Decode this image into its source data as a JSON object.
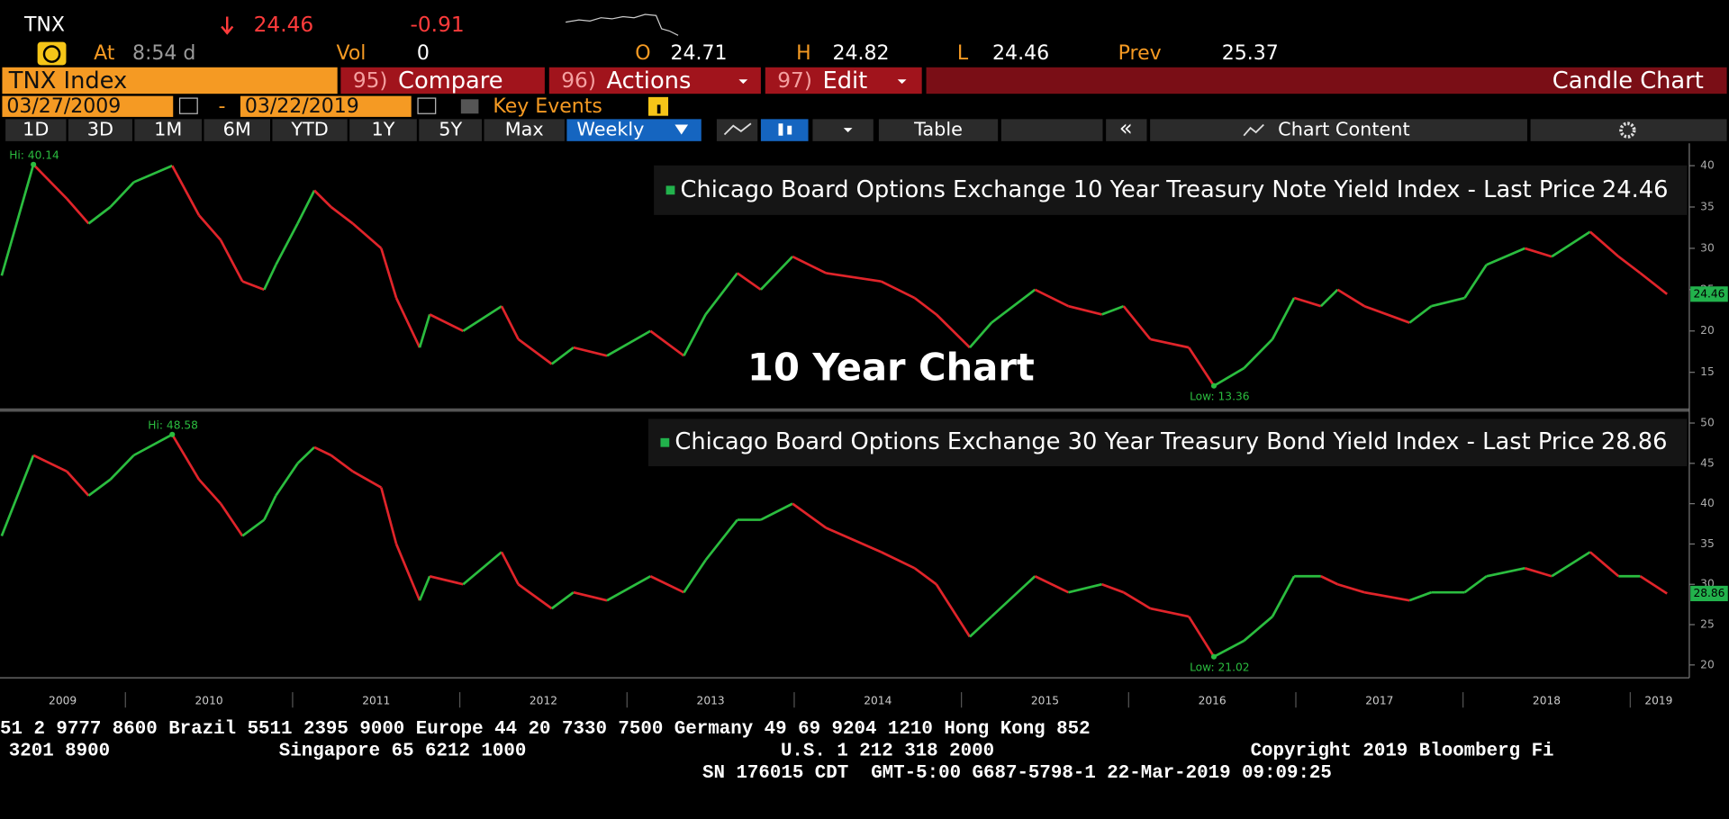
{
  "quote": {
    "ticker": "TNX",
    "last": "24.46",
    "change": "-0.91",
    "at_label": "At",
    "time": "8:54 d",
    "vol_label": "Vol",
    "vol": "0",
    "open_label": "O",
    "open": "24.71",
    "high_label": "H",
    "high": "24.82",
    "low_label": "L",
    "low": "24.46",
    "prev_label": "Prev",
    "prev": "25.37"
  },
  "menu": {
    "security": "TNX Index",
    "items": [
      {
        "num": "95)",
        "label": "Compare"
      },
      {
        "num": "96)",
        "label": "Actions"
      },
      {
        "num": "97)",
        "label": "Edit"
      }
    ],
    "view": "Candle Chart"
  },
  "dates": {
    "start": "03/27/2009",
    "sep": "-",
    "end": "03/22/2019",
    "key_events": "Key Events"
  },
  "toolbar": {
    "ranges": [
      "1D",
      "3D",
      "1M",
      "6M",
      "YTD",
      "1Y",
      "5Y",
      "Max"
    ],
    "frequency": "Weekly",
    "table": "Table",
    "collapse": "«",
    "chart_content": "Chart Content"
  },
  "overlay_title": "10 Year Chart",
  "chart_data": [
    {
      "type": "candlestick",
      "up_color": "#2bbd3f",
      "down_color": "#e0242a",
      "x": [
        2009.26,
        2009.45,
        2009.65,
        2009.78,
        2009.91,
        2010.05,
        2010.28,
        2010.44,
        2010.57,
        2010.7,
        2010.83,
        2010.9,
        2011.03,
        2011.13,
        2011.23,
        2011.36,
        2011.53,
        2011.62,
        2011.76,
        2011.82,
        2012.02,
        2012.25,
        2012.35,
        2012.55,
        2012.68,
        2012.88,
        2013.14,
        2013.34,
        2013.47,
        2013.66,
        2013.8,
        2013.99,
        2014.19,
        2014.52,
        2014.72,
        2014.85,
        2015.05,
        2015.18,
        2015.44,
        2015.64,
        2015.84,
        2015.97,
        2016.13,
        2016.36,
        2016.51,
        2016.69,
        2016.86,
        2016.99,
        2017.15,
        2017.25,
        2017.41,
        2017.68,
        2017.81,
        2018.01,
        2018.14,
        2018.37,
        2018.53,
        2018.76,
        2018.93,
        2019.06,
        2019.22
      ],
      "series": [
        {
          "name": "Chicago Board Options Exchange 10 Year Treasury Note Yield Index - Last Price",
          "color": "#22b24c",
          "values": [
            26.7,
            40.14,
            36,
            33,
            35,
            38,
            40,
            34,
            31,
            26,
            25,
            28,
            33,
            37,
            35,
            33,
            30,
            24,
            18,
            22,
            20,
            23,
            19,
            16,
            18,
            17,
            20,
            17,
            22,
            27,
            25,
            29,
            27,
            26,
            24,
            22,
            18,
            21,
            25,
            23,
            22,
            23,
            19,
            18,
            13.36,
            15.5,
            19,
            24,
            23,
            25,
            23,
            21,
            23,
            24,
            28,
            30,
            29,
            32,
            29,
            27,
            24.46
          ]
        }
      ],
      "last_price": 24.46,
      "annotations": [
        {
          "text": "Hi: 40.14",
          "x": 2009.45,
          "y": 40.14
        },
        {
          "text": "Low: 13.36",
          "x": 2016.51,
          "y": 13.36
        }
      ],
      "xlim": [
        2009.25,
        2019.34
      ],
      "ylim": [
        10.7,
        42.7
      ],
      "yticks": [
        15,
        20,
        25,
        30,
        35,
        40
      ]
    },
    {
      "type": "candlestick",
      "up_color": "#2bbd3f",
      "down_color": "#e0242a",
      "x": [
        2009.26,
        2009.45,
        2009.65,
        2009.78,
        2009.91,
        2010.05,
        2010.28,
        2010.44,
        2010.57,
        2010.7,
        2010.83,
        2010.9,
        2011.03,
        2011.13,
        2011.23,
        2011.36,
        2011.53,
        2011.62,
        2011.76,
        2011.82,
        2012.02,
        2012.25,
        2012.35,
        2012.55,
        2012.68,
        2012.88,
        2013.14,
        2013.34,
        2013.47,
        2013.66,
        2013.8,
        2013.99,
        2014.19,
        2014.52,
        2014.72,
        2014.85,
        2015.05,
        2015.18,
        2015.44,
        2015.64,
        2015.84,
        2015.97,
        2016.13,
        2016.36,
        2016.51,
        2016.69,
        2016.86,
        2016.99,
        2017.15,
        2017.25,
        2017.41,
        2017.68,
        2017.81,
        2018.01,
        2018.14,
        2018.37,
        2018.53,
        2018.76,
        2018.93,
        2019.06,
        2019.22
      ],
      "series": [
        {
          "name": "Chicago Board Options Exchange 30 Year Treasury Bond Yield Index - Last Price",
          "color": "#22b24c",
          "values": [
            36,
            46,
            44,
            41,
            43,
            46,
            48.58,
            43,
            40,
            36,
            38,
            41,
            45,
            47,
            46,
            44,
            42,
            35,
            28,
            31,
            30,
            34,
            30,
            27,
            29,
            28,
            31,
            29,
            33,
            38,
            38,
            40,
            37,
            34,
            32,
            30,
            23.5,
            26,
            31,
            29,
            30,
            29,
            27,
            26,
            21.02,
            23,
            26,
            31,
            31,
            30,
            29,
            28,
            29,
            29,
            31,
            32,
            31,
            34,
            31,
            31,
            28.86
          ]
        }
      ],
      "last_price": 28.86,
      "annotations": [
        {
          "text": "Hi: 48.58",
          "x": 2010.28,
          "y": 48.58
        },
        {
          "text": "Low: 21.02",
          "x": 2016.51,
          "y": 21.02
        }
      ],
      "xlim": [
        2009.25,
        2019.34
      ],
      "ylim": [
        18.4,
        51.2
      ],
      "yticks": [
        20,
        25,
        30,
        35,
        40,
        45,
        50
      ],
      "xticks": [
        2009,
        2010,
        2011,
        2012,
        2013,
        2014,
        2015,
        2016,
        2017,
        2018,
        2019
      ]
    }
  ],
  "footer": {
    "line1": "51 2 9777 8600 Brazil 5511 2395 9000 Europe 44 20 7330 7500 Germany 49 69 9204 1210 Hong Kong 852",
    "line2": [
      "3201 8900",
      "Singapore 65 6212 1000",
      "U.S. 1 212 318 2000",
      "Copyright 2019 Bloomberg Fi"
    ],
    "line3": "SN 176015 CDT  GMT-5:00 G687-5798-1 22-Mar-2019 09:09:25"
  }
}
